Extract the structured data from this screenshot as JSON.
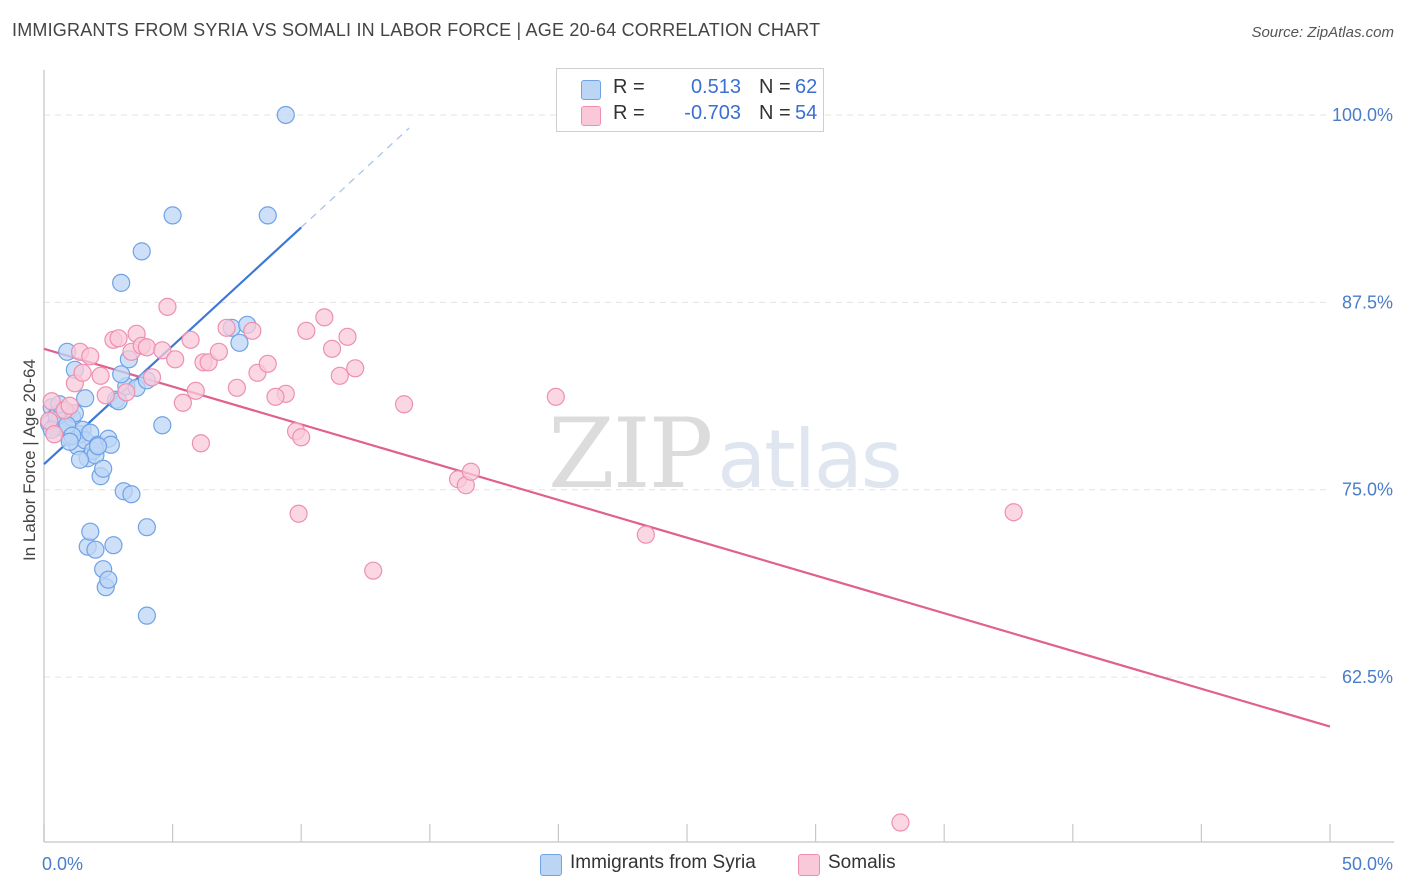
{
  "title": "IMMIGRANTS FROM SYRIA VS SOMALI IN LABOR FORCE | AGE 20-64 CORRELATION CHART",
  "source": "Source: ZipAtlas.com",
  "watermark": {
    "zip": "ZIP",
    "atlas": "atlas"
  },
  "stats": [
    {
      "r_label": "R =",
      "r_value": "0.513",
      "n_label": "N =",
      "n_value": "62",
      "color": "#6fa3e6",
      "fill": "#bcd5f5"
    },
    {
      "r_label": "R =",
      "r_value": "-0.703",
      "n_label": "N =",
      "n_value": "54",
      "color": "#ee8fb0",
      "fill": "#f9c9d9"
    }
  ],
  "legend": [
    {
      "label": "Immigrants from Syria",
      "fill": "#bcd5f5",
      "stroke": "#6fa3e6"
    },
    {
      "label": "Somalis",
      "fill": "#f9c9d9",
      "stroke": "#ee8fb0"
    }
  ],
  "chart_data": {
    "type": "scatter",
    "title": "IMMIGRANTS FROM SYRIA VS SOMALI IN LABOR FORCE | AGE 20-64 CORRELATION CHART",
    "xlabel": "",
    "ylabel": "In Labor Force | Age 20-64",
    "xlim": [
      0,
      50
    ],
    "ylim": [
      51.5,
      103
    ],
    "x_tick_labels": [
      "0.0%",
      "50.0%"
    ],
    "y_ticks": [
      62.5,
      75.0,
      87.5,
      100.0
    ],
    "y_tick_labels": [
      "62.5%",
      "75.0%",
      "87.5%",
      "100.0%"
    ],
    "grid": true,
    "series": [
      {
        "name": "Immigrants from Syria",
        "color": "#3b78d8",
        "fill": "#bcd5f5",
        "stroke": "#6fa3e6",
        "trendline": {
          "x0": 0.0,
          "y0": 76.7,
          "x1": 10.0,
          "y1": 92.5,
          "dash_x1": 14.2
        },
        "points": [
          [
            0.2,
            79.4
          ],
          [
            0.3,
            80.5
          ],
          [
            0.4,
            79.2
          ],
          [
            0.5,
            80.0
          ],
          [
            0.6,
            79.6
          ],
          [
            0.7,
            80.3
          ],
          [
            0.8,
            79.1
          ],
          [
            0.9,
            80.2
          ],
          [
            1.0,
            78.5
          ],
          [
            1.1,
            79.8
          ],
          [
            1.2,
            80.1
          ],
          [
            1.3,
            77.9
          ],
          [
            1.4,
            78.7
          ],
          [
            1.5,
            79.0
          ],
          [
            1.6,
            78.3
          ],
          [
            1.7,
            77.1
          ],
          [
            1.8,
            78.8
          ],
          [
            1.9,
            77.6
          ],
          [
            2.0,
            77.3
          ],
          [
            2.1,
            78.0
          ],
          [
            2.2,
            75.9
          ],
          [
            2.3,
            76.4
          ],
          [
            2.5,
            78.4
          ],
          [
            2.6,
            78.0
          ],
          [
            0.5,
            79.9
          ],
          [
            0.9,
            79.3
          ],
          [
            1.1,
            78.6
          ],
          [
            1.6,
            81.1
          ],
          [
            2.8,
            81.0
          ],
          [
            3.2,
            81.9
          ],
          [
            3.6,
            81.8
          ],
          [
            3.0,
            82.7
          ],
          [
            3.3,
            83.7
          ],
          [
            4.0,
            82.3
          ],
          [
            4.6,
            79.3
          ],
          [
            0.9,
            84.2
          ],
          [
            1.2,
            83.0
          ],
          [
            1.7,
            71.2
          ],
          [
            1.8,
            72.2
          ],
          [
            2.0,
            71.0
          ],
          [
            2.3,
            69.7
          ],
          [
            2.4,
            68.5
          ],
          [
            2.5,
            69.0
          ],
          [
            2.7,
            71.3
          ],
          [
            3.1,
            74.9
          ],
          [
            3.4,
            74.7
          ],
          [
            4.0,
            72.5
          ],
          [
            4.0,
            66.6
          ],
          [
            2.1,
            77.9
          ],
          [
            5.0,
            93.3
          ],
          [
            7.3,
            85.8
          ],
          [
            7.6,
            84.8
          ],
          [
            7.9,
            86.0
          ],
          [
            3.0,
            88.8
          ],
          [
            3.8,
            90.9
          ],
          [
            8.7,
            93.3
          ],
          [
            9.4,
            100.0
          ],
          [
            1.0,
            78.2
          ],
          [
            1.4,
            77.0
          ],
          [
            0.6,
            80.7
          ],
          [
            2.9,
            80.9
          ],
          [
            0.3,
            79.0
          ]
        ]
      },
      {
        "name": "Somalis",
        "color": "#e0608f",
        "fill": "#f9c9d9",
        "stroke": "#ee8fb0",
        "trendline": {
          "x0": 0.0,
          "y0": 84.4,
          "x1": 50.0,
          "y1": 59.2
        },
        "points": [
          [
            0.3,
            80.9
          ],
          [
            0.2,
            79.6
          ],
          [
            0.4,
            78.7
          ],
          [
            0.8,
            80.3
          ],
          [
            1.0,
            80.6
          ],
          [
            1.2,
            82.1
          ],
          [
            1.4,
            84.2
          ],
          [
            1.5,
            82.8
          ],
          [
            1.8,
            83.9
          ],
          [
            2.2,
            82.6
          ],
          [
            2.4,
            81.3
          ],
          [
            2.7,
            85.0
          ],
          [
            2.9,
            85.1
          ],
          [
            3.2,
            81.5
          ],
          [
            3.4,
            84.2
          ],
          [
            3.6,
            85.4
          ],
          [
            3.8,
            84.6
          ],
          [
            4.0,
            84.5
          ],
          [
            4.2,
            82.5
          ],
          [
            4.6,
            84.3
          ],
          [
            4.8,
            87.2
          ],
          [
            5.1,
            83.7
          ],
          [
            5.4,
            80.8
          ],
          [
            5.7,
            85.0
          ],
          [
            5.9,
            81.6
          ],
          [
            6.2,
            83.5
          ],
          [
            6.4,
            83.5
          ],
          [
            6.8,
            84.2
          ],
          [
            7.1,
            85.8
          ],
          [
            7.5,
            81.8
          ],
          [
            8.1,
            85.6
          ],
          [
            8.3,
            82.8
          ],
          [
            8.7,
            83.4
          ],
          [
            9.4,
            81.4
          ],
          [
            9.0,
            81.2
          ],
          [
            10.2,
            85.6
          ],
          [
            10.9,
            86.5
          ],
          [
            11.2,
            84.4
          ],
          [
            11.5,
            82.6
          ],
          [
            11.8,
            85.2
          ],
          [
            12.1,
            83.1
          ],
          [
            6.1,
            78.1
          ],
          [
            9.8,
            78.9
          ],
          [
            10.0,
            78.5
          ],
          [
            9.9,
            73.4
          ],
          [
            14.0,
            80.7
          ],
          [
            16.1,
            75.7
          ],
          [
            16.4,
            75.3
          ],
          [
            16.6,
            76.2
          ],
          [
            12.8,
            69.6
          ],
          [
            19.9,
            81.2
          ],
          [
            23.4,
            72.0
          ],
          [
            37.7,
            73.5
          ],
          [
            33.3,
            52.8
          ]
        ]
      }
    ]
  }
}
